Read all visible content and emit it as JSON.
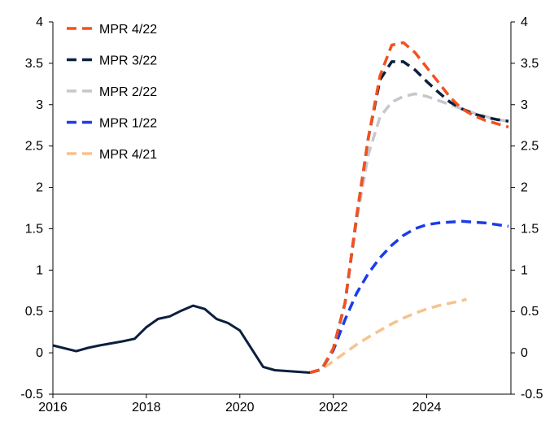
{
  "chart_data": {
    "type": "line",
    "title": "",
    "xlabel": "",
    "ylabel": "",
    "xlim": [
      2016,
      2025.8
    ],
    "ylim": [
      -0.5,
      4
    ],
    "x_ticks": [
      {
        "value": 2016,
        "label": "2016"
      },
      {
        "value": 2018,
        "label": "2018"
      },
      {
        "value": 2020,
        "label": "2020"
      },
      {
        "value": 2022,
        "label": "2022"
      },
      {
        "value": 2024,
        "label": "2024"
      }
    ],
    "y_ticks": [
      {
        "value": 4,
        "label": "4"
      },
      {
        "value": 3.5,
        "label": "3.5"
      },
      {
        "value": 3,
        "label": "3"
      },
      {
        "value": 2.5,
        "label": "2.5"
      },
      {
        "value": 2,
        "label": "2"
      },
      {
        "value": 1.5,
        "label": "1.5"
      },
      {
        "value": 1,
        "label": "1"
      },
      {
        "value": 0.5,
        "label": "0.5"
      },
      {
        "value": 0,
        "label": "0"
      },
      {
        "value": -0.5,
        "label": "-0.5"
      }
    ],
    "legend_position": "top-left",
    "history": {
      "color": "#0b1f3f",
      "points": [
        [
          2016.0,
          0.09
        ],
        [
          2016.5,
          0.02
        ],
        [
          2016.75,
          0.06
        ],
        [
          2017.0,
          0.09
        ],
        [
          2017.5,
          0.14
        ],
        [
          2017.75,
          0.17
        ],
        [
          2018.0,
          0.31
        ],
        [
          2018.25,
          0.41
        ],
        [
          2018.5,
          0.44
        ],
        [
          2018.75,
          0.51
        ],
        [
          2019.0,
          0.57
        ],
        [
          2019.25,
          0.53
        ],
        [
          2019.5,
          0.41
        ],
        [
          2019.75,
          0.36
        ],
        [
          2020.0,
          0.27
        ],
        [
          2020.5,
          -0.17
        ],
        [
          2020.75,
          -0.21
        ],
        [
          2021.0,
          -0.22
        ],
        [
          2021.5,
          -0.24
        ]
      ]
    },
    "series": [
      {
        "name": "MPR 4/22",
        "color": "#f4511e",
        "dash": true,
        "points": [
          [
            2021.5,
            -0.24
          ],
          [
            2021.75,
            -0.2
          ],
          [
            2022.0,
            0.05
          ],
          [
            2022.25,
            0.6
          ],
          [
            2022.5,
            1.65
          ],
          [
            2022.75,
            2.6
          ],
          [
            2023.0,
            3.35
          ],
          [
            2023.25,
            3.72
          ],
          [
            2023.5,
            3.75
          ],
          [
            2023.75,
            3.63
          ],
          [
            2024.0,
            3.45
          ],
          [
            2024.25,
            3.27
          ],
          [
            2024.5,
            3.09
          ],
          [
            2024.75,
            2.95
          ],
          [
            2025.0,
            2.87
          ],
          [
            2025.25,
            2.81
          ],
          [
            2025.5,
            2.77
          ],
          [
            2025.75,
            2.73
          ]
        ]
      },
      {
        "name": "MPR 3/22",
        "color": "#0b1f3f",
        "dash": true,
        "points": [
          [
            2021.5,
            -0.24
          ],
          [
            2021.75,
            -0.2
          ],
          [
            2022.0,
            0.05
          ],
          [
            2022.25,
            0.6
          ],
          [
            2022.5,
            1.65
          ],
          [
            2022.75,
            2.6
          ],
          [
            2023.0,
            3.3
          ],
          [
            2023.25,
            3.52
          ],
          [
            2023.5,
            3.52
          ],
          [
            2023.75,
            3.42
          ],
          [
            2024.0,
            3.28
          ],
          [
            2024.25,
            3.15
          ],
          [
            2024.5,
            3.03
          ],
          [
            2024.75,
            2.95
          ],
          [
            2025.0,
            2.89
          ],
          [
            2025.25,
            2.85
          ],
          [
            2025.5,
            2.82
          ],
          [
            2025.75,
            2.8
          ]
        ]
      },
      {
        "name": "MPR 2/22",
        "color": "#c5c7cc",
        "dash": true,
        "points": [
          [
            2021.5,
            -0.24
          ],
          [
            2021.75,
            -0.2
          ],
          [
            2022.0,
            0.05
          ],
          [
            2022.25,
            0.6
          ],
          [
            2022.5,
            1.6
          ],
          [
            2022.75,
            2.4
          ],
          [
            2023.0,
            2.85
          ],
          [
            2023.25,
            3.03
          ],
          [
            2023.5,
            3.1
          ],
          [
            2023.75,
            3.13
          ],
          [
            2024.0,
            3.1
          ],
          [
            2024.25,
            3.05
          ],
          [
            2024.5,
            3.0
          ],
          [
            2024.75,
            2.95
          ],
          [
            2025.0,
            2.9
          ],
          [
            2025.25,
            2.86
          ],
          [
            2025.5,
            2.82
          ],
          [
            2025.75,
            2.8
          ]
        ]
      },
      {
        "name": "MPR 1/22",
        "color": "#1c3ce8",
        "dash": true,
        "points": [
          [
            2021.5,
            -0.24
          ],
          [
            2021.75,
            -0.2
          ],
          [
            2022.0,
            0.03
          ],
          [
            2022.25,
            0.4
          ],
          [
            2022.5,
            0.72
          ],
          [
            2022.75,
            0.96
          ],
          [
            2023.0,
            1.15
          ],
          [
            2023.25,
            1.3
          ],
          [
            2023.5,
            1.42
          ],
          [
            2023.75,
            1.5
          ],
          [
            2024.0,
            1.55
          ],
          [
            2024.25,
            1.57
          ],
          [
            2024.5,
            1.58
          ],
          [
            2024.75,
            1.59
          ],
          [
            2025.0,
            1.58
          ],
          [
            2025.25,
            1.57
          ],
          [
            2025.5,
            1.55
          ],
          [
            2025.75,
            1.53
          ]
        ]
      },
      {
        "name": "MPR 4/21",
        "color": "#f7c28e",
        "dash": true,
        "points": [
          [
            2021.5,
            -0.24
          ],
          [
            2021.75,
            -0.2
          ],
          [
            2022.0,
            -0.1
          ],
          [
            2022.25,
            0.0
          ],
          [
            2022.5,
            0.1
          ],
          [
            2022.75,
            0.19
          ],
          [
            2023.0,
            0.27
          ],
          [
            2023.25,
            0.35
          ],
          [
            2023.5,
            0.42
          ],
          [
            2023.75,
            0.48
          ],
          [
            2024.0,
            0.53
          ],
          [
            2024.25,
            0.57
          ],
          [
            2024.5,
            0.6
          ],
          [
            2024.75,
            0.63
          ],
          [
            2024.85,
            0.65
          ]
        ]
      }
    ]
  }
}
